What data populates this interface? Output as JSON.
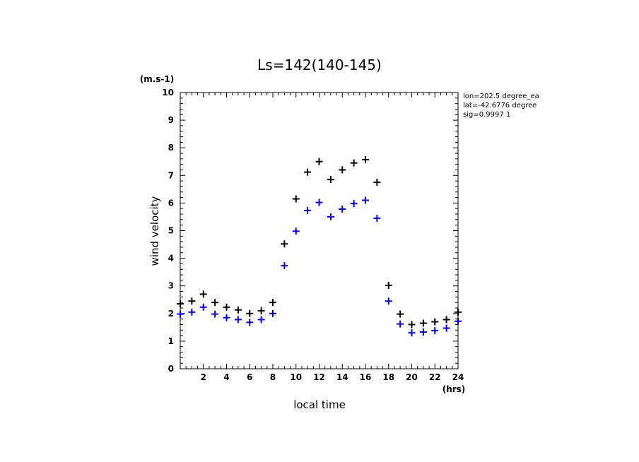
{
  "chart_data": {
    "type": "scatter",
    "title": "Ls=142(140-145)",
    "xlabel": "local time",
    "ylabel": "wind velocity",
    "x_unit": "(hrs)",
    "y_unit": "(m.s-1)",
    "xlim": [
      0,
      24
    ],
    "ylim": [
      0,
      10
    ],
    "xticks": [
      2,
      4,
      6,
      8,
      10,
      12,
      14,
      16,
      18,
      20,
      22,
      24
    ],
    "yticks": [
      0,
      1,
      2,
      3,
      4,
      5,
      6,
      7,
      8,
      9,
      10
    ],
    "grid": false,
    "marker": "+",
    "annotations": [
      "lon=202.5 degree_ea",
      "lat=-42.6776 degree",
      "sig=0.9997 1"
    ],
    "x": [
      0,
      1,
      2,
      3,
      4,
      5,
      6,
      7,
      8,
      9,
      10,
      11,
      12,
      13,
      14,
      15,
      16,
      17,
      18,
      19,
      20,
      21,
      22,
      23,
      24
    ],
    "series": [
      {
        "color": "#000000",
        "values": [
          2.35,
          2.45,
          2.7,
          2.4,
          2.23,
          2.13,
          2.0,
          2.1,
          2.4,
          4.52,
          6.15,
          7.12,
          7.5,
          6.85,
          7.2,
          7.45,
          7.57,
          6.75,
          3.02,
          1.98,
          1.6,
          1.65,
          1.7,
          1.78,
          2.05
        ]
      },
      {
        "color": "#0000ff",
        "values": [
          1.98,
          2.05,
          2.23,
          1.98,
          1.85,
          1.78,
          1.68,
          1.78,
          2.0,
          3.73,
          4.98,
          5.73,
          6.02,
          5.5,
          5.78,
          5.98,
          6.1,
          5.45,
          2.45,
          1.62,
          1.3,
          1.33,
          1.38,
          1.47,
          1.72
        ]
      }
    ]
  }
}
